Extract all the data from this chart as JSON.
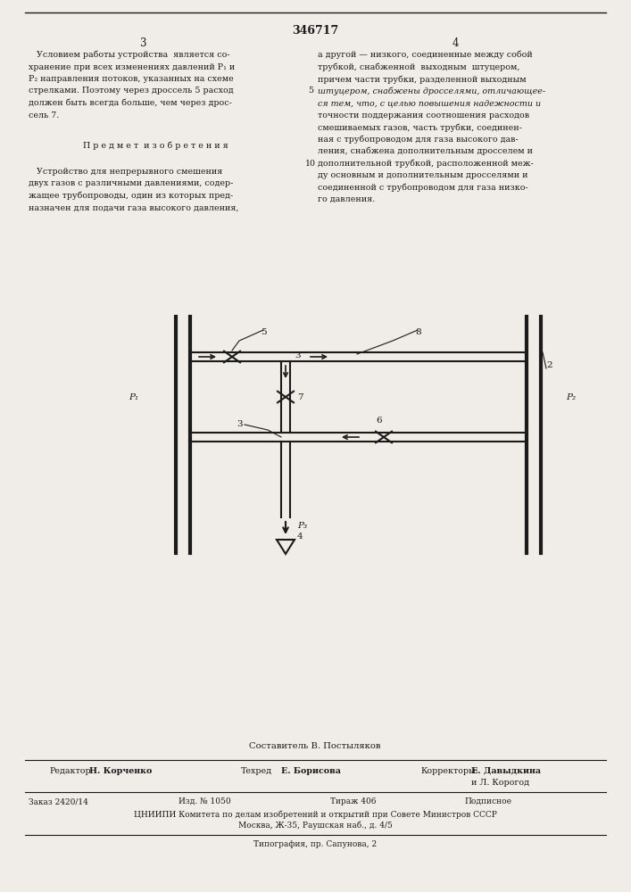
{
  "title": "346717",
  "page_left": "3",
  "page_right": "4",
  "bg_color": "#f0ede8",
  "text_color": "#1a1a1a",
  "col1_text": [
    "   Условием работы устройства  является со-",
    "хранение при всех изменениях давлений P₁ и",
    "P₂ направления потоков, указанных на схеме",
    "стрелками. Поэтому через дроссель 5 расход",
    "должен быть всегда больше, чем через дрос-",
    "сель 7."
  ],
  "col1_text2_title": "   П р е д м е т  и з о б р е т е н и я",
  "col1_text2": [
    "   Устройство для непрерывного смешения",
    "двух газов с различными давлениями, содер-",
    "жащее трубопроводы, один из которых пред-",
    "назначен для подачи газа высокого давления,"
  ],
  "col2_text": [
    "а другой — низкого, соединенные между собой",
    "трубкой, снабженной  выходным  штуцером,",
    "причем части трубки, разделенной выходным",
    "штуцером, снабжены дросселями, отличающее-",
    "ся тем, что, с целью повышения надежности и",
    "точности поддержания соотношения расходов",
    "смешиваемых газов, часть трубки, соединен-",
    "ная с трубопроводом для газа высокого дав-",
    "ления, снабжена дополнительным дросселем и",
    "дополнительной трубкой, расположенной меж-",
    "ду основным и дополнительным дросселями и",
    "соединенной с трубопроводом для газа низко-",
    "го давления."
  ],
  "line_number_5": "5",
  "line_number_10": "10",
  "footer_compiler": "Составитель В. Постыляков",
  "footer_editor_label": "Редактор",
  "footer_editor_name": "Н. Корченко",
  "footer_techred_label": "Техред",
  "footer_techred_name": "Е. Борисова",
  "footer_corr_label": "Корректоры:",
  "footer_corr_name1": "Е. Давыдкина",
  "footer_corr_name2": "и Л. Корогод",
  "footer_order": "Заказ 2420/14",
  "footer_edition": "Изд. № 1050",
  "footer_circulation": "Тираж 406",
  "footer_subscription": "Подписное",
  "footer_org": "ЦНИИПИ Комитета по делам изобретений и открытий при Совете Министров СССР",
  "footer_address": "Москва, Ж-35, Раушская наб., д. 4/5",
  "footer_print": "Типография, пр. Сапунова, 2",
  "lc": "#1a1a1a"
}
